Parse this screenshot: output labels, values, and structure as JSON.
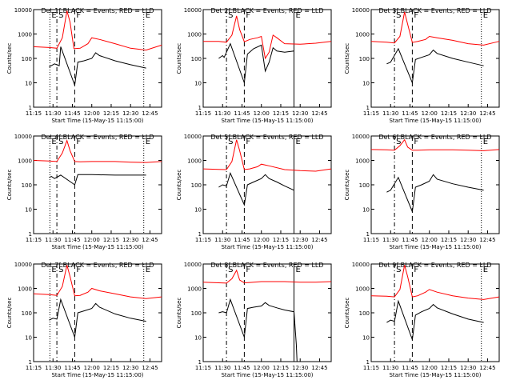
{
  "colors": {
    "background": "#ffffff",
    "events": "#000000",
    "lld": "#ff0000",
    "axes": "#000000"
  },
  "shared": {
    "ylabel": "Counts/sec",
    "xlabel": "Start Time (15-May-15 11:15:00)",
    "xticks": [
      "11:15",
      "11:30",
      "11:45",
      "12:00",
      "12:15",
      "12:30",
      "12:45"
    ],
    "yticks": [
      "1",
      "10",
      "100",
      "1000",
      "10000"
    ],
    "markers": [
      {
        "label": "E",
        "x": 11.46,
        "style": "dotted"
      },
      {
        "label": "S",
        "x": 11.55,
        "style": "dashdot"
      },
      {
        "label": "F",
        "x": 11.78,
        "style": "dashed"
      },
      {
        "label": "E",
        "x": 12.67,
        "style": "dotted"
      }
    ]
  },
  "chart_data": [
    {
      "type": "line",
      "title": "Det 1f BLACK = Events, RED = LLD",
      "xlabel": "Start Time",
      "ylabel": "Counts/sec",
      "xlim": [
        11.25,
        12.9
      ],
      "ylim": [
        1,
        10000
      ],
      "yscale": "log",
      "markers": [
        {
          "label": "E",
          "x": 11.46,
          "style": "dotted"
        },
        {
          "label": "S",
          "x": 11.55,
          "style": "dashdot"
        },
        {
          "label": "F",
          "x": 11.78,
          "style": "dashed"
        },
        {
          "label": "E",
          "x": 12.67,
          "style": "dotted"
        }
      ],
      "series": [
        {
          "color": "#ff0000",
          "x": [
            11.25,
            11.45,
            11.55,
            11.62,
            11.68,
            11.72,
            11.77,
            11.85,
            11.95,
            12.0,
            12.1,
            12.3,
            12.5,
            12.7,
            12.9
          ],
          "values": [
            300,
            280,
            260,
            700,
            9000,
            3000,
            250,
            260,
            400,
            700,
            600,
            400,
            260,
            220,
            350
          ]
        },
        {
          "color": "#000000",
          "x": [
            11.45,
            11.5,
            11.52,
            11.58,
            11.6,
            11.78,
            11.82,
            11.9,
            12.0,
            12.05,
            12.1,
            12.3,
            12.5,
            12.7
          ],
          "values": [
            45,
            55,
            60,
            50,
            300,
            8,
            70,
            80,
            100,
            170,
            130,
            80,
            55,
            40
          ]
        }
      ]
    },
    {
      "type": "line",
      "title": "Det 2f BLACK = Events, RED = LLD",
      "xlabel": "Start Time",
      "ylabel": "Counts/sec",
      "xlim": [
        11.25,
        12.9
      ],
      "ylim": [
        1,
        10000
      ],
      "yscale": "log",
      "markers": [
        {
          "label": "S",
          "x": 11.55,
          "style": "dashdot"
        },
        {
          "label": "F",
          "x": 11.78,
          "style": "dashed"
        },
        {
          "label": "E",
          "x": 12.42,
          "style": "solid"
        }
      ],
      "series": [
        {
          "color": "#ff0000",
          "x": [
            11.25,
            11.45,
            11.55,
            11.62,
            11.68,
            11.72,
            11.78,
            11.85,
            11.95,
            12.0,
            12.05,
            12.1,
            12.15,
            12.2,
            12.3,
            12.5,
            12.7,
            12.9
          ],
          "values": [
            500,
            500,
            460,
            900,
            5500,
            1500,
            480,
            600,
            700,
            800,
            100,
            180,
            900,
            700,
            400,
            380,
            420,
            500
          ]
        },
        {
          "color": "#000000",
          "x": [
            11.45,
            11.5,
            11.52,
            11.6,
            11.78,
            11.82,
            11.9,
            12.0,
            12.05,
            12.1,
            12.15,
            12.2,
            12.3,
            12.42
          ],
          "values": [
            100,
            130,
            110,
            400,
            10,
            150,
            250,
            350,
            30,
            70,
            270,
            200,
            180,
            200
          ]
        }
      ]
    },
    {
      "type": "line",
      "title": "Det 3f BLACK = Events, RED = LLD",
      "xlabel": "Start Time",
      "ylabel": "Counts/sec",
      "xlim": [
        11.25,
        12.9
      ],
      "ylim": [
        1,
        10000
      ],
      "yscale": "log",
      "markers": [
        {
          "label": "S",
          "x": 11.55,
          "style": "dashdot"
        },
        {
          "label": "F",
          "x": 11.78,
          "style": "dashed"
        },
        {
          "label": "E",
          "x": 12.67,
          "style": "dotted"
        }
      ],
      "series": [
        {
          "color": "#ff0000",
          "x": [
            11.25,
            11.45,
            11.55,
            11.62,
            11.68,
            11.72,
            11.78,
            11.85,
            11.95,
            12.0,
            12.1,
            12.3,
            12.5,
            12.7,
            12.9
          ],
          "values": [
            500,
            460,
            430,
            800,
            8000,
            2500,
            450,
            500,
            600,
            800,
            700,
            550,
            400,
            350,
            500
          ]
        },
        {
          "color": "#000000",
          "x": [
            11.45,
            11.5,
            11.6,
            11.78,
            11.82,
            11.9,
            12.0,
            12.05,
            12.1,
            12.3,
            12.5,
            12.7
          ],
          "values": [
            60,
            70,
            250,
            10,
            90,
            110,
            140,
            220,
            160,
            100,
            70,
            50
          ]
        }
      ]
    },
    {
      "type": "line",
      "title": "Det 4f BLACK = Events, RED = LLD",
      "xlabel": "Start Time",
      "ylabel": "Counts/sec",
      "xlim": [
        11.25,
        12.9
      ],
      "ylim": [
        1,
        10000
      ],
      "yscale": "log",
      "markers": [
        {
          "label": "E",
          "x": 11.46,
          "style": "dotted"
        },
        {
          "label": "S",
          "x": 11.55,
          "style": "dashdot"
        },
        {
          "label": "F",
          "x": 11.78,
          "style": "dashed"
        },
        {
          "label": "E",
          "x": 12.67,
          "style": "dotted"
        }
      ],
      "series": [
        {
          "color": "#ff0000",
          "x": [
            11.25,
            11.45,
            11.55,
            11.62,
            11.68,
            11.72,
            11.78,
            11.85,
            12.0,
            12.3,
            12.5,
            12.7,
            12.9
          ],
          "values": [
            1000,
            950,
            900,
            2000,
            6500,
            2500,
            900,
            880,
            900,
            900,
            850,
            820,
            900
          ]
        },
        {
          "color": "#000000",
          "x": [
            11.45,
            11.48,
            11.52,
            11.6,
            11.78,
            11.82,
            12.0,
            12.3,
            12.5,
            12.7
          ],
          "values": [
            200,
            220,
            180,
            250,
            100,
            260,
            260,
            250,
            250,
            250
          ]
        }
      ]
    },
    {
      "type": "line",
      "title": "Det 5f BLACK = Events, RED = LLD",
      "xlabel": "Start Time",
      "ylabel": "Counts/sec",
      "xlim": [
        11.25,
        12.9
      ],
      "ylim": [
        1,
        10000
      ],
      "yscale": "log",
      "markers": [
        {
          "label": "S",
          "x": 11.55,
          "style": "dashdot"
        },
        {
          "label": "F",
          "x": 11.78,
          "style": "dashed"
        },
        {
          "label": "E",
          "x": 12.42,
          "style": "solid"
        }
      ],
      "series": [
        {
          "color": "#ff0000",
          "x": [
            11.25,
            11.45,
            11.55,
            11.62,
            11.68,
            11.72,
            11.78,
            11.85,
            11.95,
            12.0,
            12.1,
            12.3,
            12.5,
            12.7,
            12.9
          ],
          "values": [
            450,
            430,
            420,
            900,
            7000,
            2500,
            420,
            450,
            550,
            700,
            600,
            420,
            380,
            360,
            450
          ]
        },
        {
          "color": "#000000",
          "x": [
            11.45,
            11.5,
            11.55,
            11.6,
            11.78,
            11.82,
            11.9,
            12.0,
            12.05,
            12.1,
            12.2,
            12.3,
            12.42
          ],
          "values": [
            80,
            100,
            90,
            300,
            15,
            100,
            130,
            180,
            260,
            180,
            130,
            90,
            60
          ]
        }
      ]
    },
    {
      "type": "line",
      "title": "Det 6f BLACK = Events, RED = LLD",
      "xlabel": "Start Time",
      "ylabel": "Counts/sec",
      "xlim": [
        11.25,
        12.9
      ],
      "ylim": [
        1,
        10000
      ],
      "yscale": "log",
      "markers": [
        {
          "label": "S",
          "x": 11.55,
          "style": "dashdot"
        },
        {
          "label": "F",
          "x": 11.78,
          "style": "dashed"
        },
        {
          "label": "E",
          "x": 12.67,
          "style": "dotted"
        }
      ],
      "series": [
        {
          "color": "#ff0000",
          "x": [
            11.25,
            11.45,
            11.55,
            11.62,
            11.68,
            11.72,
            11.78,
            11.85,
            12.0,
            12.3,
            12.5,
            12.7,
            12.9
          ],
          "values": [
            2800,
            2700,
            2600,
            4000,
            7000,
            3500,
            2600,
            2600,
            2700,
            2700,
            2600,
            2500,
            2800
          ]
        },
        {
          "color": "#000000",
          "x": [
            11.45,
            11.5,
            11.6,
            11.78,
            11.82,
            11.9,
            12.0,
            12.05,
            12.1,
            12.3,
            12.5,
            12.7
          ],
          "values": [
            50,
            60,
            200,
            8,
            80,
            100,
            140,
            260,
            170,
            110,
            80,
            60
          ]
        }
      ]
    },
    {
      "type": "line",
      "title": "Det 7f BLACK = Events, RED = LLD",
      "xlabel": "Start Time",
      "ylabel": "Counts/sec",
      "xlim": [
        11.25,
        12.9
      ],
      "ylim": [
        1,
        10000
      ],
      "yscale": "log",
      "markers": [
        {
          "label": "E",
          "x": 11.46,
          "style": "dotted"
        },
        {
          "label": "S",
          "x": 11.55,
          "style": "dashdot"
        },
        {
          "label": "F",
          "x": 11.78,
          "style": "dashed"
        },
        {
          "label": "E",
          "x": 12.67,
          "style": "dotted"
        }
      ],
      "series": [
        {
          "color": "#ff0000",
          "x": [
            11.25,
            11.45,
            11.55,
            11.62,
            11.68,
            11.72,
            11.78,
            11.85,
            11.95,
            12.0,
            12.1,
            12.3,
            12.5,
            12.7,
            12.9
          ],
          "values": [
            600,
            560,
            520,
            1200,
            9000,
            3000,
            500,
            520,
            700,
            1000,
            800,
            600,
            450,
            380,
            450
          ]
        },
        {
          "color": "#000000",
          "x": [
            11.45,
            11.5,
            11.55,
            11.6,
            11.78,
            11.82,
            11.9,
            12.0,
            12.05,
            12.1,
            12.3,
            12.5,
            12.7
          ],
          "values": [
            50,
            60,
            55,
            350,
            10,
            100,
            120,
            150,
            240,
            170,
            90,
            60,
            45
          ]
        }
      ]
    },
    {
      "type": "line",
      "title": "Det 8f BLACK = Events, RED = LLD",
      "xlabel": "Start Time",
      "ylabel": "Counts/sec",
      "xlim": [
        11.25,
        12.9
      ],
      "ylim": [
        1,
        10000
      ],
      "yscale": "log",
      "markers": [
        {
          "label": "S",
          "x": 11.55,
          "style": "dashdot"
        },
        {
          "label": "F",
          "x": 11.78,
          "style": "dashed"
        },
        {
          "label": "E",
          "x": 12.42,
          "style": "solid"
        }
      ],
      "series": [
        {
          "color": "#ff0000",
          "x": [
            11.25,
            11.45,
            11.55,
            11.62,
            11.68,
            11.72,
            11.78,
            11.85,
            12.0,
            12.3,
            12.5,
            12.7,
            12.9
          ],
          "values": [
            1800,
            1700,
            1650,
            2500,
            5500,
            2200,
            1700,
            1750,
            1900,
            1900,
            1800,
            1800,
            1900
          ]
        },
        {
          "color": "#000000",
          "x": [
            11.45,
            11.5,
            11.55,
            11.6,
            11.78,
            11.82,
            11.9,
            12.0,
            12.05,
            12.1,
            12.2,
            12.3,
            12.42,
            12.45,
            12.46
          ],
          "values": [
            100,
            110,
            100,
            350,
            10,
            150,
            170,
            190,
            260,
            200,
            160,
            130,
            110,
            5,
            1
          ]
        }
      ]
    },
    {
      "type": "line",
      "title": "Det 9f BLACK = Events, RED = LLD",
      "xlabel": "Start Time",
      "ylabel": "Counts/sec",
      "xlim": [
        11.25,
        12.9
      ],
      "ylim": [
        1,
        10000
      ],
      "yscale": "log",
      "markers": [
        {
          "label": "S",
          "x": 11.55,
          "style": "dashdot"
        },
        {
          "label": "F",
          "x": 11.78,
          "style": "dashed"
        },
        {
          "label": "E",
          "x": 12.67,
          "style": "dotted"
        }
      ],
      "series": [
        {
          "color": "#ff0000",
          "x": [
            11.25,
            11.45,
            11.55,
            11.62,
            11.68,
            11.72,
            11.78,
            11.85,
            11.95,
            12.0,
            12.1,
            12.3,
            12.5,
            12.7,
            12.9
          ],
          "values": [
            500,
            480,
            450,
            900,
            9000,
            3000,
            450,
            500,
            700,
            900,
            700,
            500,
            400,
            350,
            450
          ]
        },
        {
          "color": "#000000",
          "x": [
            11.45,
            11.5,
            11.55,
            11.6,
            11.78,
            11.82,
            11.9,
            12.0,
            12.05,
            12.1,
            12.3,
            12.5,
            12.7
          ],
          "values": [
            40,
            50,
            45,
            300,
            8,
            80,
            110,
            150,
            220,
            160,
            90,
            55,
            40
          ]
        }
      ]
    }
  ]
}
